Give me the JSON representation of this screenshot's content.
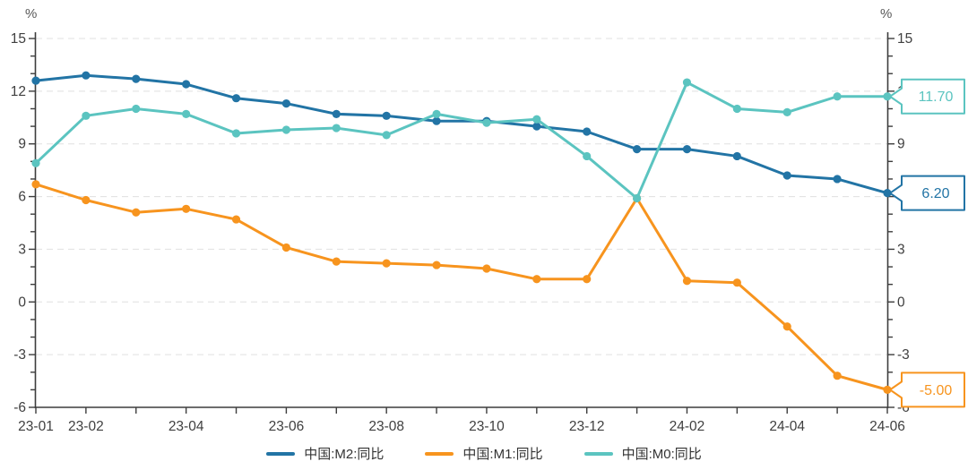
{
  "chart_data": {
    "type": "line",
    "title": "",
    "y_unit": "%",
    "xlabel": "",
    "ylabel": "%",
    "ylim": [
      -6,
      15
    ],
    "y_major_step": 3,
    "y_minor_step": 1,
    "grid": "horizontal-dashed",
    "legend_position": "bottom-center",
    "axis_color": "#3d3d3d",
    "grid_color": "#e0e0e0",
    "text_color": "#404040",
    "categories": [
      "23-01",
      "23-02",
      "23-03",
      "23-04",
      "23-05",
      "23-06",
      "23-07",
      "23-08",
      "23-09",
      "23-10",
      "23-11",
      "23-12",
      "24-01",
      "24-02",
      "24-03",
      "24-04",
      "24-05",
      "24-06"
    ],
    "x_labeled_ticks": [
      "23-01",
      "23-02",
      "23-04",
      "23-06",
      "23-08",
      "23-10",
      "23-12",
      "24-02",
      "24-04",
      "24-06"
    ],
    "series": [
      {
        "key": "m2",
        "name": "中国:M2:同比",
        "color": "#2274A5",
        "end_label": "6.20",
        "values": [
          12.6,
          12.9,
          12.7,
          12.4,
          11.6,
          11.3,
          10.7,
          10.6,
          10.3,
          10.3,
          10.0,
          9.7,
          8.7,
          8.7,
          8.3,
          7.2,
          7.0,
          6.2
        ]
      },
      {
        "key": "m1",
        "name": "中国:M1:同比",
        "color": "#F7941E",
        "end_label": "-5.00",
        "values": [
          6.7,
          5.8,
          5.1,
          5.3,
          4.7,
          3.1,
          2.3,
          2.2,
          2.1,
          1.9,
          1.3,
          1.3,
          5.9,
          1.2,
          1.1,
          -1.4,
          -4.2,
          -5.0
        ]
      },
      {
        "key": "m0",
        "name": "中国:M0:同比",
        "color": "#5BC4C0",
        "end_label": "11.70",
        "values": [
          7.9,
          10.6,
          11.0,
          10.7,
          9.6,
          9.8,
          9.9,
          9.5,
          10.7,
          10.2,
          10.4,
          8.3,
          5.9,
          12.5,
          11.0,
          10.8,
          11.7,
          11.7
        ]
      }
    ]
  }
}
